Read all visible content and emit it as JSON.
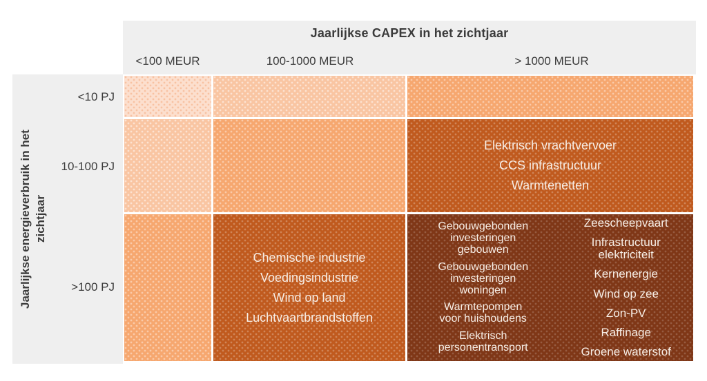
{
  "chart_data": {
    "type": "heatmap",
    "title": "Jaarlijkse CAPEX in het zichtjaar",
    "x_axis_label": "Jaarlijkse CAPEX in het zichtjaar",
    "x_categories": [
      "<100 MEUR",
      "100-1000 MEUR",
      "> 1000 MEUR"
    ],
    "y_axis_label": "Jaarlijkse energieverbruik in het zichtjaar",
    "y_axis_label_lines": [
      "Jaarlijkse energieverbruik in het",
      "zichtjaar"
    ],
    "y_categories": [
      "<10 PJ",
      "10-100 PJ",
      ">100 PJ"
    ],
    "legend": "none",
    "intensity_scale": "1 (lightest) to 5 (darkest), increasing toward high CAPEX and high energy use",
    "levels_matrix": [
      [
        1,
        2,
        3
      ],
      [
        2,
        3,
        4
      ],
      [
        3,
        4,
        5
      ]
    ],
    "cells": [
      {
        "row": "<10 PJ",
        "col": "<100 MEUR",
        "level": 1,
        "items": []
      },
      {
        "row": "<10 PJ",
        "col": "100-1000 MEUR",
        "level": 2,
        "items": []
      },
      {
        "row": "<10 PJ",
        "col": "> 1000 MEUR",
        "level": 3,
        "items": []
      },
      {
        "row": "10-100 PJ",
        "col": "<100 MEUR",
        "level": 2,
        "items": []
      },
      {
        "row": "10-100 PJ",
        "col": "100-1000 MEUR",
        "level": 3,
        "items": []
      },
      {
        "row": "10-100 PJ",
        "col": "> 1000 MEUR",
        "level": 4,
        "items": [
          "Elektrisch vrachtvervoer",
          "CCS infrastructuur",
          "Warmtenetten"
        ]
      },
      {
        "row": ">100 PJ",
        "col": "<100 MEUR",
        "level": 3,
        "items": []
      },
      {
        "row": ">100 PJ",
        "col": "100-1000 MEUR",
        "level": 4,
        "items": [
          "Chemische industrie",
          "Voedingsindustrie",
          "Wind op land",
          "Luchtvaartbrandstoffen"
        ]
      },
      {
        "row": ">100 PJ",
        "col": "> 1000 MEUR",
        "level": 5,
        "items_left": [
          "Gebouwgebonden\ninvesteringen\ngebouwen",
          "Gebouwgebonden\ninvesteringen\nwoningen",
          "Warmtepompen\nvoor huishoudens",
          "Elektrisch\npersonentransport"
        ],
        "items_right": [
          "Zeescheepvaart",
          "Infrastructuur\nelektriciteit",
          "Kernenergie",
          "Wind op zee",
          "Zon-PV",
          "Raffinage",
          "Groene waterstof"
        ]
      }
    ],
    "colors": {
      "level1": "#fcdfce",
      "level2": "#f9c5a2",
      "level3": "#f6a76f",
      "level4": "#c05a1e",
      "level5": "#7f3717",
      "header_band": "#efefef",
      "label_text": "#3b3b3b",
      "cell_text": "#f7eee6"
    }
  }
}
